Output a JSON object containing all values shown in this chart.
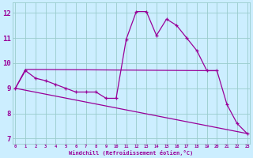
{
  "xlabel": "Windchill (Refroidissement éolien,°C)",
  "bg_color": "#cceeff",
  "grid_color": "#99cccc",
  "line_color": "#990099",
  "hours": [
    0,
    1,
    2,
    3,
    4,
    5,
    6,
    7,
    8,
    9,
    10,
    11,
    12,
    13,
    14,
    15,
    16,
    17,
    18,
    19,
    20,
    21,
    22,
    23
  ],
  "windchill": [
    9.0,
    9.7,
    9.4,
    9.3,
    9.15,
    9.0,
    8.85,
    8.85,
    8.85,
    8.6,
    8.6,
    10.95,
    12.05,
    12.05,
    11.1,
    11.75,
    11.5,
    11.0,
    10.5,
    9.7,
    9.7,
    8.35,
    7.6,
    7.2
  ],
  "line2_x": [
    0,
    1,
    19,
    20
  ],
  "line2_y": [
    9.0,
    9.75,
    9.7,
    9.7
  ],
  "line3_x": [
    0,
    23
  ],
  "line3_y": [
    9.0,
    7.2
  ],
  "ylim": [
    6.8,
    12.4
  ],
  "xlim": [
    -0.3,
    23.3
  ],
  "yticks": [
    7,
    8,
    9,
    10,
    11,
    12
  ],
  "xticks": [
    0,
    1,
    2,
    3,
    4,
    5,
    6,
    7,
    8,
    9,
    10,
    11,
    12,
    13,
    14,
    15,
    16,
    17,
    18,
    19,
    20,
    21,
    22,
    23
  ]
}
